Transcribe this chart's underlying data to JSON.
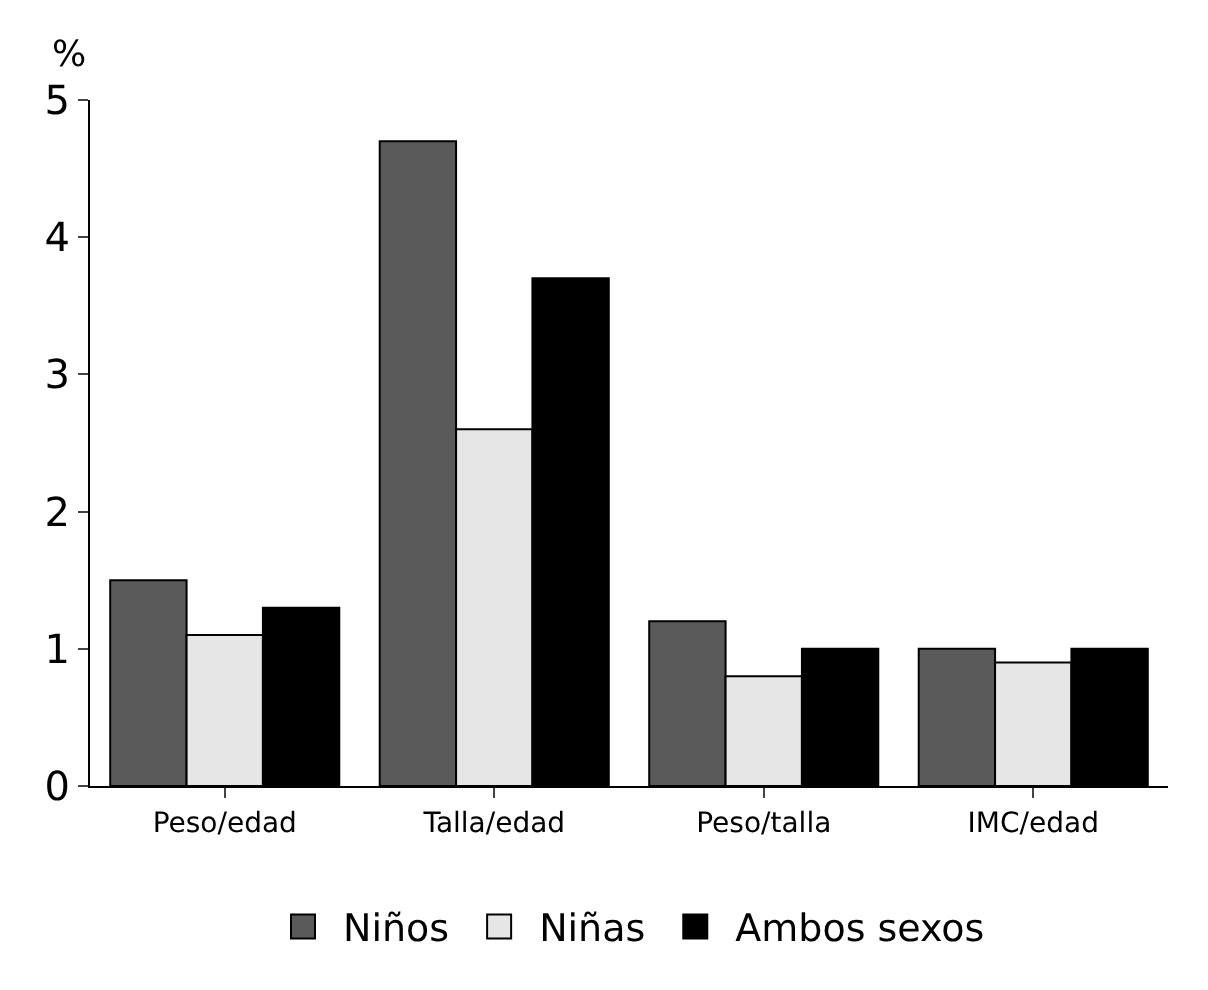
{
  "chart_data": {
    "type": "bar",
    "ylabel": "%",
    "categories": [
      "Peso/edad",
      "Talla/edad",
      "Peso/talla",
      "IMC/edad"
    ],
    "series": [
      {
        "name": "Niños",
        "color": "#5a5a5a",
        "values": [
          1.5,
          4.7,
          1.2,
          1.0
        ]
      },
      {
        "name": "Niñas",
        "color": "#e6e6e6",
        "values": [
          1.1,
          2.6,
          0.8,
          0.9
        ]
      },
      {
        "name": "Ambos sexos",
        "color": "#000000",
        "values": [
          1.3,
          3.7,
          1.0,
          1.0
        ]
      }
    ],
    "ylim": [
      0,
      5
    ],
    "yticks": [
      0,
      1,
      2,
      3,
      4,
      5
    ],
    "grid": false,
    "legend": "bottom"
  }
}
